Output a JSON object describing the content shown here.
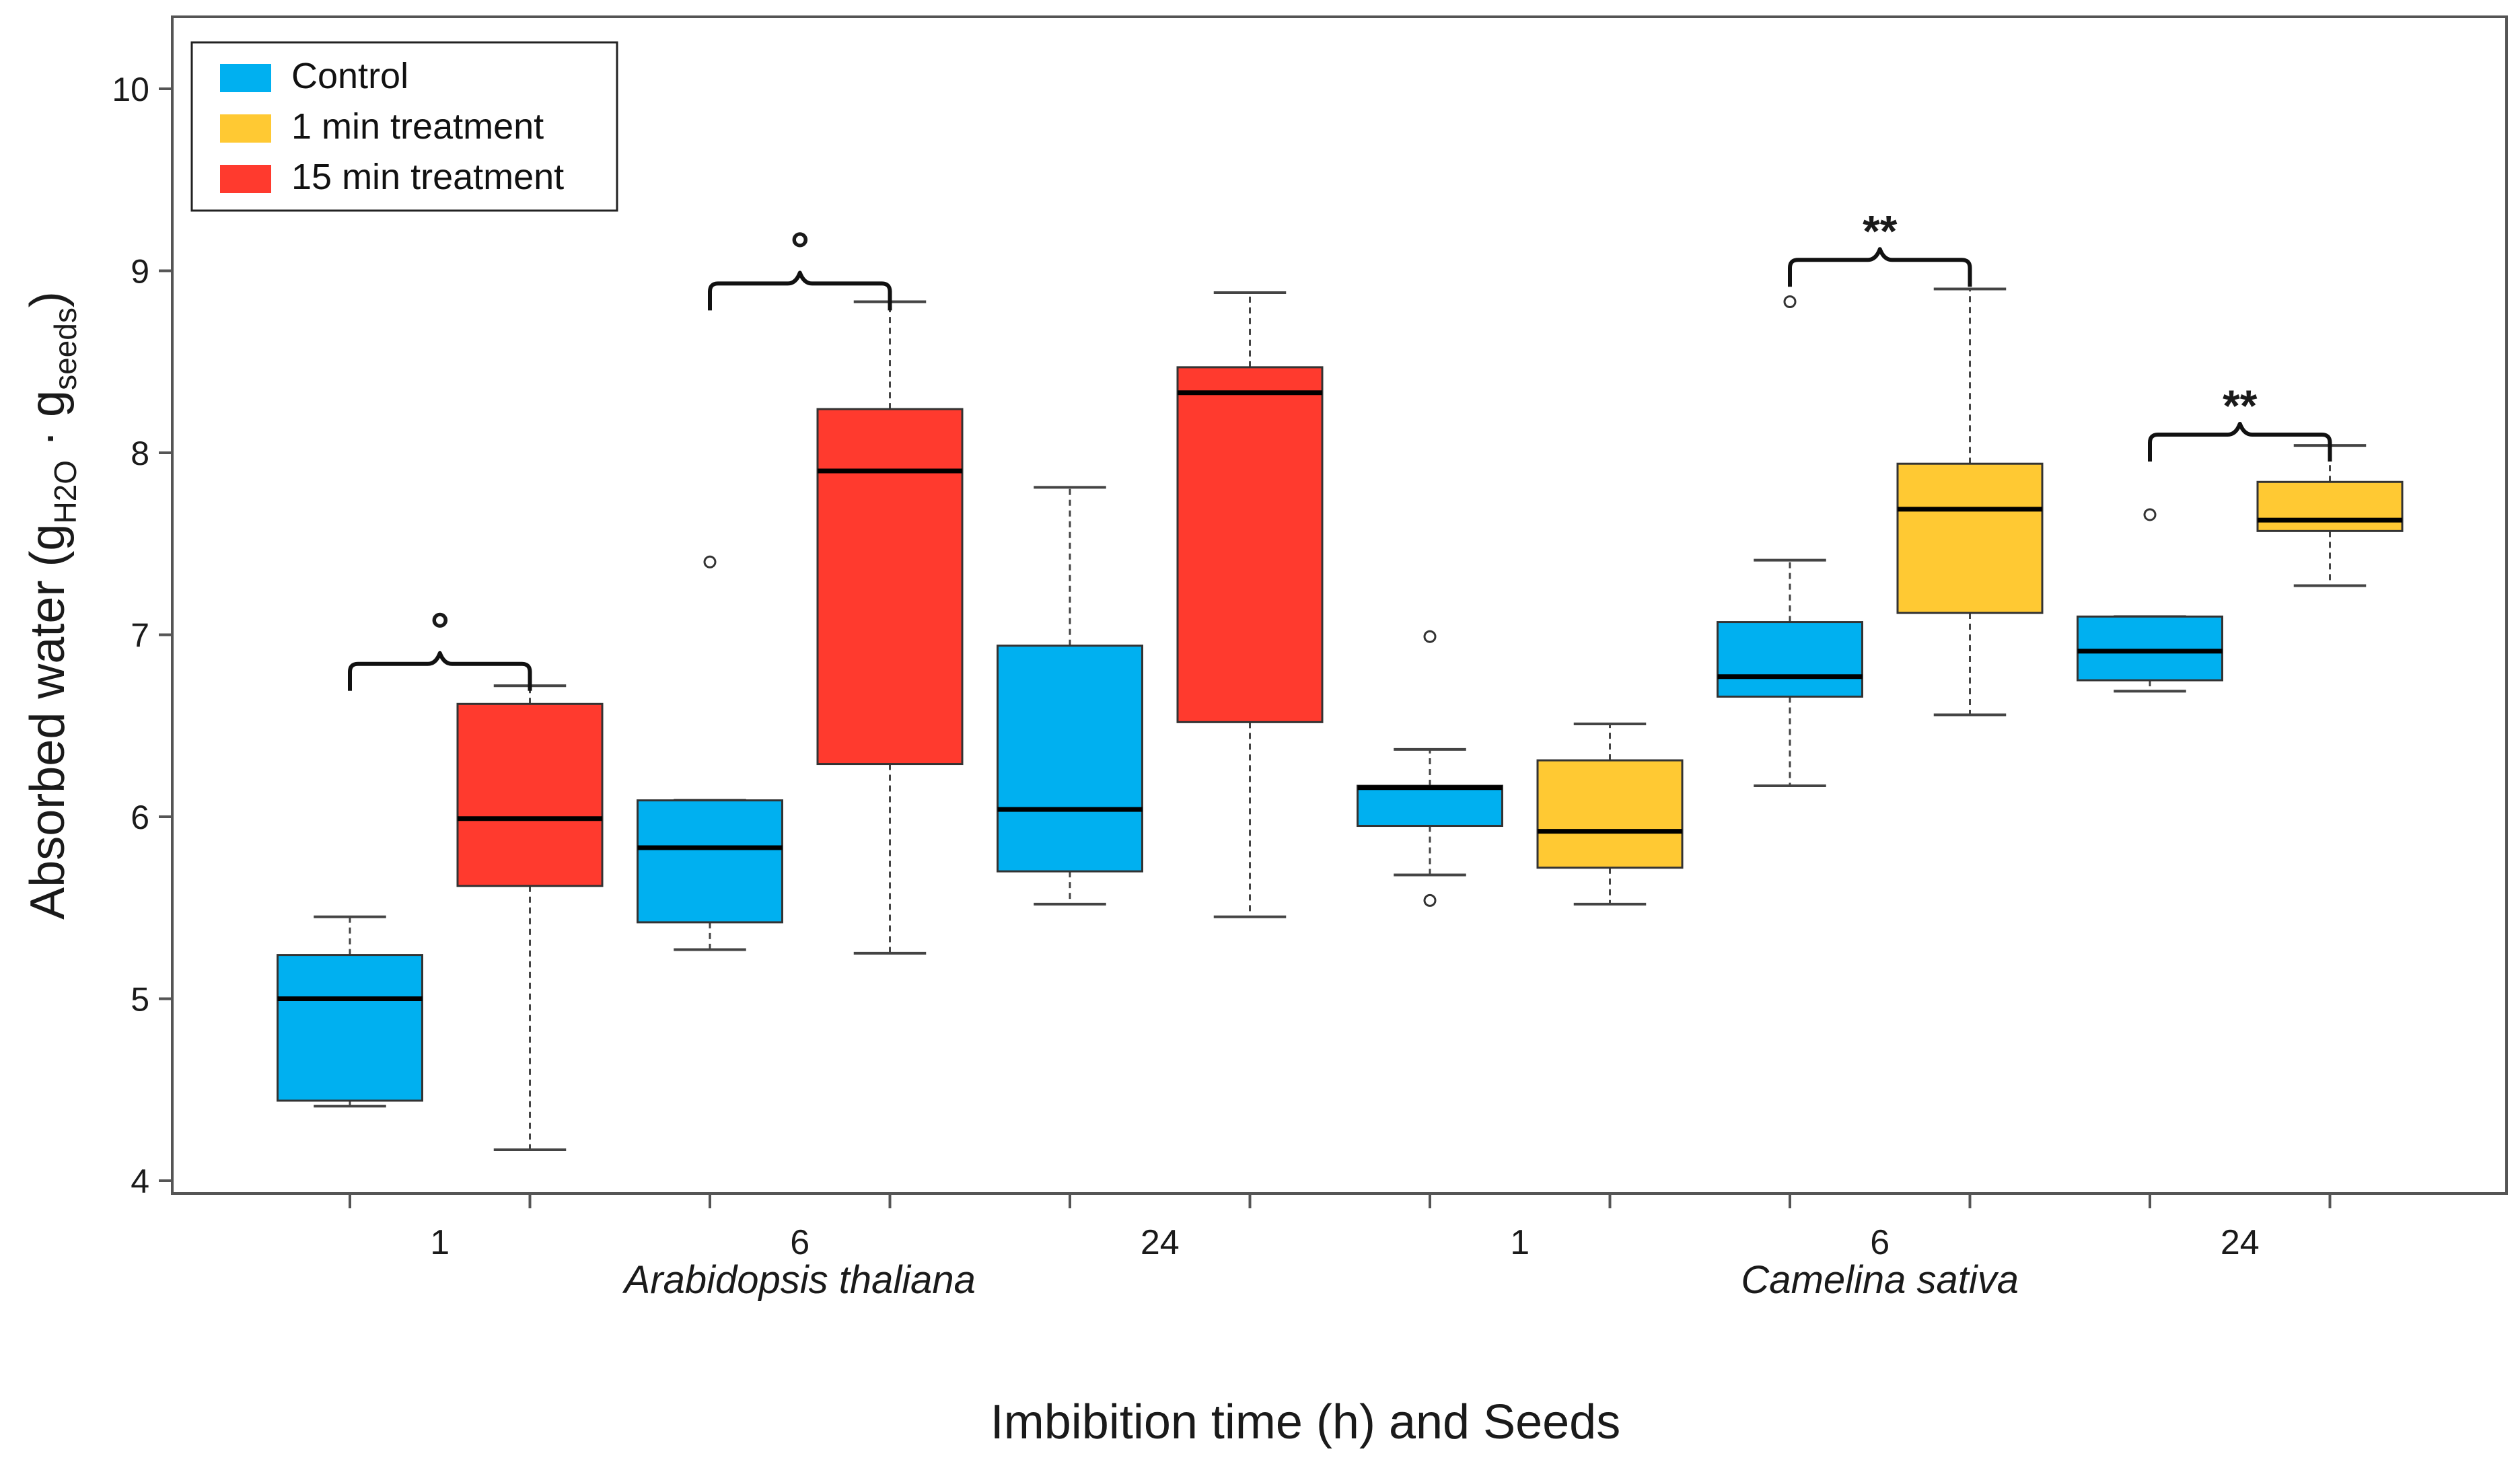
{
  "chart_data": {
    "type": "box",
    "title": "",
    "xlabel": "Imbibition time (h) and Seeds",
    "ylabel": {
      "main": "Absorbed water (g",
      "sub1": "H2O",
      "mid": " · g",
      "sub2": "seeds",
      "close": ")"
    },
    "ylim": [
      4,
      10.4
    ],
    "y_ticks": [
      4,
      5,
      6,
      7,
      8,
      9,
      10
    ],
    "x_positions_count": 12,
    "x_tick_labels": [
      {
        "text": "1",
        "pos": 1.5
      },
      {
        "text": "6",
        "pos": 3.5
      },
      {
        "text": "24",
        "pos": 5.5
      },
      {
        "text": "1",
        "pos": 7.5
      },
      {
        "text": "6",
        "pos": 9.5
      },
      {
        "text": "24",
        "pos": 11.5
      }
    ],
    "group_labels": [
      {
        "text": "Arabidopsis thaliana",
        "pos": 3.5
      },
      {
        "text": "Camelina sativa",
        "pos": 9.5
      }
    ],
    "series_colors": {
      "Control": "#00b0f0",
      "1 min treatment": "#ffc933",
      "15 min treatment": "#ff3a2e"
    },
    "legend": {
      "position": "top-left",
      "entries": [
        {
          "label": "Control",
          "color": "#00b0f0"
        },
        {
          "label": "1 min treatment",
          "color": "#ffc933"
        },
        {
          "label": "15 min treatment",
          "color": "#ff3a2e"
        }
      ]
    },
    "boxes": [
      {
        "pos": 1,
        "series": "Control",
        "seed": "Arabidopsis thaliana",
        "time": "1",
        "whisker_low": 4.41,
        "q1": 4.44,
        "median": 5.0,
        "q3": 5.24,
        "whisker_high": 5.45,
        "outliers": []
      },
      {
        "pos": 2,
        "series": "15 min treatment",
        "seed": "Arabidopsis thaliana",
        "time": "1",
        "whisker_low": 4.17,
        "q1": 5.62,
        "median": 5.99,
        "q3": 6.62,
        "whisker_high": 6.72,
        "outliers": []
      },
      {
        "pos": 3,
        "series": "Control",
        "seed": "Arabidopsis thaliana",
        "time": "6",
        "whisker_low": 5.27,
        "q1": 5.42,
        "median": 5.83,
        "q3": 6.09,
        "whisker_high": 6.09,
        "outliers": [
          7.4
        ]
      },
      {
        "pos": 4,
        "series": "15 min treatment",
        "seed": "Arabidopsis thaliana",
        "time": "6",
        "whisker_low": 5.25,
        "q1": 6.29,
        "median": 7.9,
        "q3": 8.24,
        "whisker_high": 8.83,
        "outliers": []
      },
      {
        "pos": 5,
        "series": "Control",
        "seed": "Arabidopsis thaliana",
        "time": "24",
        "whisker_low": 5.52,
        "q1": 5.7,
        "median": 6.04,
        "q3": 6.94,
        "whisker_high": 7.81,
        "outliers": []
      },
      {
        "pos": 6,
        "series": "15 min treatment",
        "seed": "Arabidopsis thaliana",
        "time": "24",
        "whisker_low": 5.45,
        "q1": 6.52,
        "median": 8.33,
        "q3": 8.47,
        "whisker_high": 8.88,
        "outliers": []
      },
      {
        "pos": 7,
        "series": "Control",
        "seed": "Camelina sativa",
        "time": "1",
        "whisker_low": 5.68,
        "q1": 5.95,
        "median": 6.16,
        "q3": 6.17,
        "whisker_high": 6.37,
        "outliers": [
          6.99,
          5.54
        ]
      },
      {
        "pos": 8,
        "series": "1 min treatment",
        "seed": "Camelina sativa",
        "time": "1",
        "whisker_low": 5.52,
        "q1": 5.72,
        "median": 5.92,
        "q3": 6.31,
        "whisker_high": 6.51,
        "outliers": []
      },
      {
        "pos": 9,
        "series": "Control",
        "seed": "Camelina sativa",
        "time": "6",
        "whisker_low": 6.17,
        "q1": 6.66,
        "median": 6.77,
        "q3": 7.07,
        "whisker_high": 7.41,
        "outliers": [
          8.83
        ]
      },
      {
        "pos": 10,
        "series": "1 min treatment",
        "seed": "Camelina sativa",
        "time": "6",
        "whisker_low": 6.56,
        "q1": 7.12,
        "median": 7.69,
        "q3": 7.94,
        "whisker_high": 8.9,
        "outliers": []
      },
      {
        "pos": 11,
        "series": "Control",
        "seed": "Camelina sativa",
        "time": "24",
        "whisker_low": 6.69,
        "q1": 6.75,
        "median": 6.91,
        "q3": 7.1,
        "whisker_high": 7.1,
        "outliers": [
          7.66
        ]
      },
      {
        "pos": 12,
        "series": "1 min treatment",
        "seed": "Camelina sativa",
        "time": "24",
        "whisker_low": 7.27,
        "q1": 7.57,
        "median": 7.63,
        "q3": 7.84,
        "whisker_high": 8.04,
        "outliers": []
      }
    ],
    "annotations": [
      {
        "from": 1,
        "to": 2,
        "y": 6.84,
        "label": "°"
      },
      {
        "from": 3,
        "to": 4,
        "y": 8.93,
        "label": "°"
      },
      {
        "from": 9,
        "to": 10,
        "y": 9.06,
        "label": "**"
      },
      {
        "from": 11,
        "to": 12,
        "y": 8.1,
        "label": "**"
      }
    ]
  }
}
